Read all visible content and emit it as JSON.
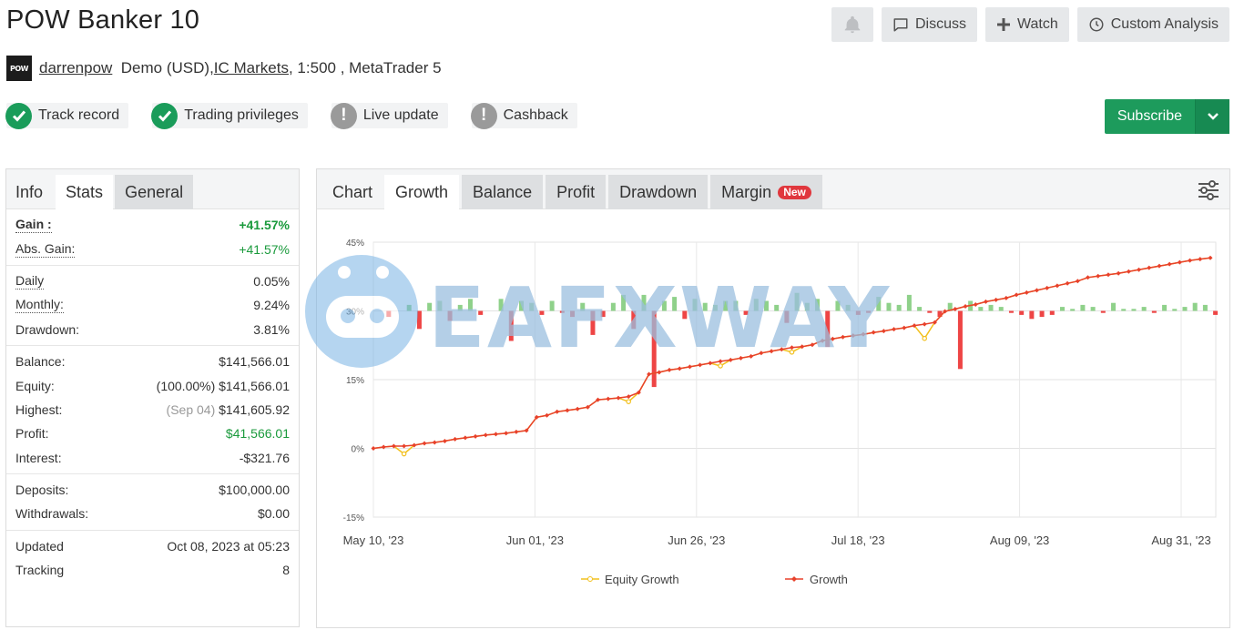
{
  "header": {
    "title": "POW Banker 10",
    "bell_icon": "bell-icon",
    "discuss_label": "Discuss",
    "watch_label": "Watch",
    "custom_analysis_label": "Custom Analysis"
  },
  "account": {
    "avatar_text": "POW",
    "username": "darrenpow",
    "type": "Demo (USD), ",
    "broker": "IC Markets",
    "leverage": " , 1:500 , MetaTrader 5"
  },
  "badges": [
    {
      "label": "Track record",
      "status": "ok"
    },
    {
      "label": "Trading privileges",
      "status": "ok"
    },
    {
      "label": "Live update",
      "status": "warn"
    },
    {
      "label": "Cashback",
      "status": "warn"
    }
  ],
  "subscribe_label": "Subscribe",
  "left_tabs": {
    "label": "Info",
    "stats": "Stats",
    "general": "General"
  },
  "stats": {
    "gain": {
      "k": "Gain :",
      "v": "+41.57%"
    },
    "abs_gain": {
      "k": "Abs. Gain:",
      "v": "+41.57%"
    },
    "daily": {
      "k": "Daily",
      "v": "0.05%"
    },
    "monthly": {
      "k": "Monthly:",
      "v": "9.24%"
    },
    "drawdown": {
      "k": "Drawdown:",
      "v": "3.81%"
    },
    "balance": {
      "k": "Balance:",
      "v": "$141,566.01"
    },
    "equity": {
      "k": "Equity:",
      "pre": "(100.00%) ",
      "v": "$141,566.01"
    },
    "highest": {
      "k": "Highest:",
      "pre": "(Sep 04) ",
      "v": "$141,605.92"
    },
    "profit": {
      "k": "Profit:",
      "v": "$41,566.01"
    },
    "interest": {
      "k": "Interest:",
      "v": "-$321.76"
    },
    "deposits": {
      "k": "Deposits:",
      "v": "$100,000.00"
    },
    "withdrawals": {
      "k": "Withdrawals:",
      "v": "$0.00"
    },
    "updated": {
      "k": "Updated",
      "v": "Oct 08, 2023 at 05:23"
    },
    "tracking": {
      "k": "Tracking",
      "v": "8"
    }
  },
  "chart_tabs": {
    "label": "Chart",
    "growth": "Growth",
    "balance": "Balance",
    "profit": "Profit",
    "drawdown": "Drawdown",
    "margin": "Margin",
    "new_badge": "New"
  },
  "watermark_text": "EAFXWAY",
  "colors": {
    "growth": "#e8412b",
    "equity": "#f2c01e",
    "bar_positive": "#8fd18a",
    "bar_negative": "#ee4545",
    "accent_green": "#1d9b5c"
  },
  "chart_data": {
    "type": "line",
    "ylim": [
      -15,
      45
    ],
    "yticks": [
      "-15%",
      "0%",
      "15%",
      "30%",
      "45%"
    ],
    "yticks_values": [
      -15,
      0,
      15,
      30,
      45
    ],
    "xticks": [
      "May 10, '23",
      "Jun 01, '23",
      "Jun 26, '23",
      "Jul 18, '23",
      "Aug 09, '23",
      "Aug 31, '23"
    ],
    "legend": [
      "Equity Growth",
      "Growth"
    ],
    "legend_position": "bottom",
    "growth": [
      0,
      0.3,
      0.5,
      0.5,
      0.7,
      1.1,
      1.3,
      1.6,
      2.0,
      2.3,
      2.6,
      2.9,
      3.1,
      3.3,
      3.6,
      3.9,
      6.8,
      7.2,
      8.0,
      8.3,
      8.6,
      9.0,
      10.6,
      10.8,
      11.0,
      11.3,
      12.2,
      16.2,
      16.6,
      17.1,
      17.4,
      17.8,
      18.2,
      18.6,
      19.0,
      19.3,
      19.7,
      20.1,
      20.8,
      21.2,
      21.6,
      22.0,
      22.2,
      22.6,
      23.5,
      23.9,
      24.3,
      24.6,
      24.9,
      25.3,
      25.6,
      26.0,
      26.3,
      26.8,
      27.1,
      27.5,
      29.9,
      30.4,
      31.0,
      31.4,
      32.0,
      32.4,
      32.8,
      33.5,
      34.0,
      34.5,
      35.0,
      35.5,
      36.0,
      36.5,
      37.3,
      37.6,
      37.9,
      38.2,
      38.6,
      39.0,
      39.4,
      39.8,
      40.2,
      40.6,
      41.0,
      41.3,
      41.57
    ],
    "equity_growth": [
      0,
      0.3,
      0.5,
      -1.2,
      0.7,
      1.1,
      1.3,
      1.6,
      2.0,
      2.3,
      2.6,
      2.9,
      3.1,
      3.3,
      3.6,
      3.9,
      6.8,
      7.2,
      8.0,
      8.3,
      8.6,
      9.0,
      10.6,
      10.8,
      11.0,
      10.2,
      12.2,
      16.2,
      16.6,
      17.1,
      17.4,
      17.8,
      18.2,
      18.6,
      18.0,
      19.3,
      19.7,
      20.1,
      20.8,
      21.2,
      21.6,
      21.0,
      22.2,
      22.6,
      23.5,
      23.9,
      24.3,
      24.6,
      24.9,
      25.3,
      25.6,
      26.0,
      26.3,
      26.8,
      24.0,
      27.5,
      29.9,
      30.4,
      31.0,
      31.4,
      32.0,
      32.4,
      32.8,
      33.5,
      34.0,
      34.5,
      35.0,
      35.5,
      36.0,
      36.5,
      37.3,
      37.6,
      37.9,
      38.2,
      38.6,
      39.0,
      39.4,
      39.8,
      40.2,
      40.6,
      41.0,
      41.3,
      41.57
    ],
    "daily_bars": [
      0,
      -3,
      0,
      3,
      -9,
      4,
      5,
      -5,
      3,
      6,
      -2,
      0,
      6,
      -15,
      5,
      4,
      -2,
      5,
      -1,
      -3,
      4,
      -12,
      -3,
      4,
      8,
      -9,
      8,
      -38,
      5,
      7,
      -4,
      6,
      4,
      3,
      5,
      5,
      -2,
      6,
      5,
      3,
      -6,
      9,
      4,
      6,
      -18,
      5,
      3,
      -2,
      -1,
      7,
      4,
      3,
      8,
      2,
      -1,
      -3,
      4,
      -29,
      5,
      2,
      3,
      2,
      -1,
      -2,
      -4,
      -3,
      -2,
      2,
      1,
      3,
      2,
      -1,
      4,
      1,
      1,
      2,
      -1,
      3,
      1,
      2,
      4,
      3,
      -2
    ]
  }
}
